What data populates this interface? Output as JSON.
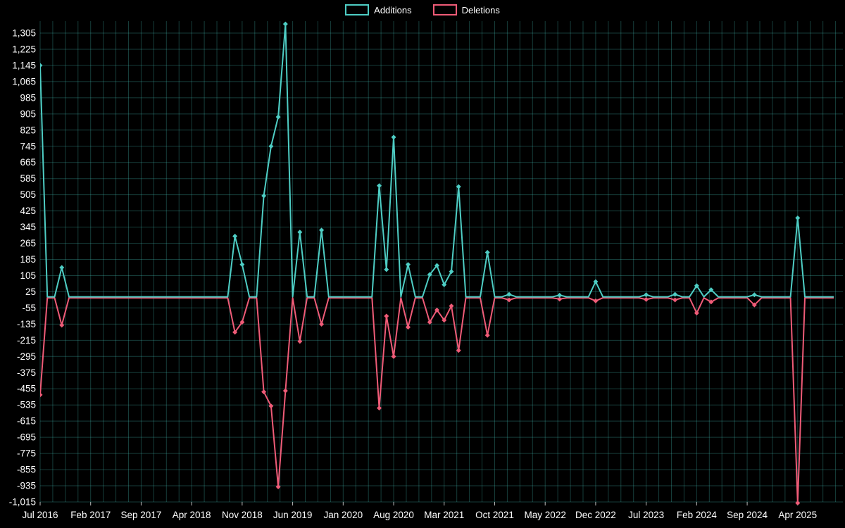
{
  "legend": {
    "additions_label": "Additions",
    "deletions_label": "Deletions"
  },
  "colors": {
    "background": "#000000",
    "additions": "#4ecdc4",
    "deletions": "#ef5b77",
    "grid": "rgba(72,201,192,0.30)",
    "axis_text": "#ffffff",
    "axis_tick": "#bbbbbb"
  },
  "chart_data": {
    "type": "line",
    "title": "",
    "legend_position": "top-center",
    "grid": true,
    "baseline": 0,
    "ylim": [
      -1015,
      1305
    ],
    "y_tick_step": 80,
    "y_ticks": [
      1305,
      1225,
      1145,
      1065,
      985,
      905,
      825,
      745,
      665,
      585,
      505,
      425,
      345,
      265,
      185,
      105,
      25,
      -55,
      -135,
      -215,
      -295,
      -375,
      -455,
      -535,
      -615,
      -695,
      -775,
      -855,
      -935,
      -1015
    ],
    "x_tick_labels": [
      "Jul 2016",
      "Feb 2017",
      "Sep 2017",
      "Apr 2018",
      "Nov 2018",
      "Jun 2019",
      "Jan 2020",
      "Aug 2020",
      "Mar 2021",
      "Oct 2021",
      "May 2022",
      "Dec 2022",
      "Jul 2023",
      "Feb 2024",
      "Sep 2024",
      "Apr 2025"
    ],
    "x_tick_months": [
      0,
      7,
      14,
      21,
      28,
      35,
      42,
      49,
      56,
      63,
      70,
      77,
      84,
      91,
      98,
      105
    ],
    "x_unit": "month",
    "total_months": 111,
    "series_names": [
      "Additions",
      "Deletions"
    ],
    "note": "Monthly additions/deletions; months not listed in points are 0 for both series.",
    "points": [
      {
        "m": 0,
        "label": "Jul 2016",
        "additions": 1145,
        "deletions": -480
      },
      {
        "m": 3,
        "label": "Oct 2016",
        "additions": 145,
        "deletions": -135
      },
      {
        "m": 27,
        "label": "Oct 2018",
        "additions": 300,
        "deletions": -170
      },
      {
        "m": 28,
        "label": "Nov 2018",
        "additions": 160,
        "deletions": -120
      },
      {
        "m": 31,
        "label": "Feb 2019",
        "additions": 500,
        "deletions": -465
      },
      {
        "m": 32,
        "label": "Mar 2019",
        "additions": 745,
        "deletions": -535
      },
      {
        "m": 33,
        "label": "Apr 2019",
        "additions": 890,
        "deletions": -935
      },
      {
        "m": 34,
        "label": "May 2019",
        "additions": 1350,
        "deletions": -460
      },
      {
        "m": 36,
        "label": "Jul 2019",
        "additions": 320,
        "deletions": -215
      },
      {
        "m": 39,
        "label": "Oct 2019",
        "additions": 330,
        "deletions": -130
      },
      {
        "m": 47,
        "label": "Jun 2020",
        "additions": 550,
        "deletions": -545
      },
      {
        "m": 48,
        "label": "Jul 2020",
        "additions": 135,
        "deletions": -90
      },
      {
        "m": 49,
        "label": "Aug 2020",
        "additions": 790,
        "deletions": -290
      },
      {
        "m": 51,
        "label": "Oct 2020",
        "additions": 160,
        "deletions": -145
      },
      {
        "m": 54,
        "label": "Jan 2021",
        "additions": 110,
        "deletions": -120
      },
      {
        "m": 55,
        "label": "Feb 2021",
        "additions": 155,
        "deletions": -60
      },
      {
        "m": 56,
        "label": "Mar 2021",
        "additions": 60,
        "deletions": -110
      },
      {
        "m": 57,
        "label": "Apr 2021",
        "additions": 125,
        "deletions": -40
      },
      {
        "m": 58,
        "label": "May 2021",
        "additions": 545,
        "deletions": -260
      },
      {
        "m": 62,
        "label": "Sep 2021",
        "additions": 220,
        "deletions": -185
      },
      {
        "m": 65,
        "label": "Dec 2021",
        "additions": 12,
        "deletions": -10
      },
      {
        "m": 72,
        "label": "Jul 2022",
        "additions": 8,
        "deletions": -6
      },
      {
        "m": 77,
        "label": "Dec 2022",
        "additions": 75,
        "deletions": -15
      },
      {
        "m": 84,
        "label": "Jul 2023",
        "additions": 10,
        "deletions": -8
      },
      {
        "m": 88,
        "label": "Nov 2023",
        "additions": 12,
        "deletions": -10
      },
      {
        "m": 91,
        "label": "Feb 2024",
        "additions": 55,
        "deletions": -75
      },
      {
        "m": 93,
        "label": "Apr 2024",
        "additions": 35,
        "deletions": -20
      },
      {
        "m": 99,
        "label": "Oct 2024",
        "additions": 10,
        "deletions": -35
      },
      {
        "m": 105,
        "label": "Apr 2025",
        "additions": 390,
        "deletions": -1015
      }
    ]
  }
}
